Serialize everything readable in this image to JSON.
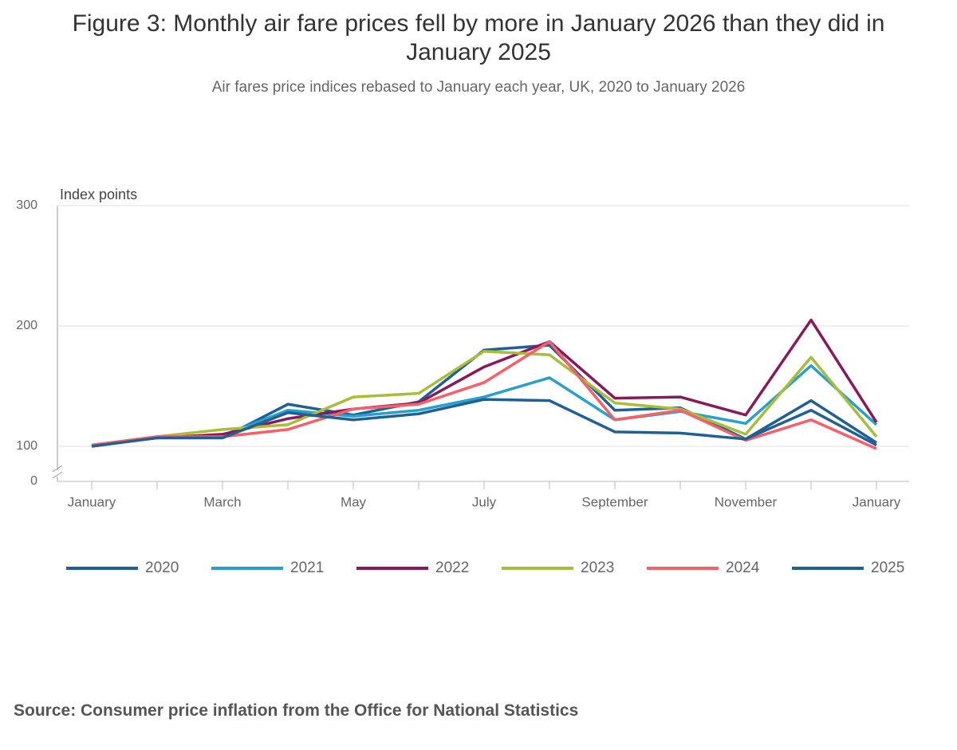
{
  "chart_data": {
    "type": "line",
    "title": "Figure 3: Monthly air fare prices fell by more in January 2026 than they did in January 2025",
    "subtitle": "Air fares price indices rebased to January each year, UK, 2020 to January 2026",
    "y_label": "Index points",
    "source": "Source: Consumer price inflation from the Office for National Statistics",
    "categories": [
      "January",
      null,
      "March",
      null,
      "May",
      null,
      "July",
      null,
      "September",
      null,
      "November",
      null,
      "January"
    ],
    "ylim": [
      100,
      300
    ],
    "yticks": [
      0,
      100,
      200,
      300
    ],
    "axis_break": true,
    "grid": true,
    "legend": "bottom",
    "series": [
      {
        "name": "2020",
        "color": "#206095",
        "values": [
          101,
          107,
          107,
          135,
          126,
          137,
          180,
          184,
          130,
          132,
          106,
          138,
          103
        ]
      },
      {
        "name": "2021",
        "color": "#27a0cc",
        "values": [
          101,
          107,
          109,
          130,
          125,
          130,
          141,
          157,
          122,
          129,
          119,
          167,
          118
        ]
      },
      {
        "name": "2022",
        "color": "#871a5b",
        "values": [
          101,
          107,
          110,
          123,
          131,
          136,
          166,
          187,
          140,
          141,
          126,
          205,
          120
        ]
      },
      {
        "name": "2023",
        "color": "#a8bd3a",
        "values": [
          101,
          108,
          114,
          118,
          141,
          144,
          179,
          176,
          136,
          131,
          110,
          174,
          108
        ]
      },
      {
        "name": "2024",
        "color": "#f66068",
        "values": [
          101,
          108,
          108,
          114,
          131,
          135,
          153,
          187,
          122,
          130,
          105,
          122,
          98
        ]
      },
      {
        "name": "2025",
        "color": "#206095",
        "values": [
          100,
          107,
          107,
          128,
          122,
          127,
          139,
          138,
          112,
          111,
          106,
          130,
          101
        ]
      }
    ]
  }
}
